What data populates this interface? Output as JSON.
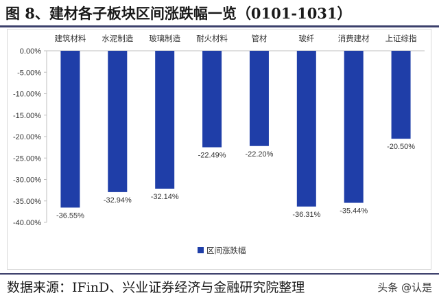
{
  "header": {
    "title": "图 8、建材各子板块区间涨跌幅一览（0101-1031）"
  },
  "footer": {
    "source": "数据来源：IFinD、兴业证券经济与金融研究院整理",
    "watermark": "头条 @认是"
  },
  "colors": {
    "bar": "#1f3ea8",
    "axis": "#bfbfbf",
    "text": "#333333",
    "rule": "#3b3f6b"
  },
  "chart_data": {
    "type": "bar",
    "title": "",
    "xlabel": "",
    "ylabel": "",
    "categories": [
      "建筑材料",
      "水泥制造",
      "玻璃制造",
      "耐火材料",
      "管材",
      "玻纤",
      "消费建材",
      "上证综指"
    ],
    "series": [
      {
        "name": "区间涨跌幅",
        "values": [
          -36.55,
          -32.94,
          -32.14,
          -22.49,
          -22.2,
          -36.31,
          -35.44,
          -20.5
        ]
      }
    ],
    "value_labels": [
      "-36.55%",
      "-32.94%",
      "-32.14%",
      "-22.49%",
      "-22.20%",
      "-36.31%",
      "-35.44%",
      "-20.50%"
    ],
    "ylim": [
      -40,
      0
    ],
    "y_ticks": [
      0,
      -5,
      -10,
      -15,
      -20,
      -25,
      -30,
      -35,
      -40
    ],
    "y_tick_labels": [
      "0.00%",
      "-5.00%",
      "-10.00%",
      "-15.00%",
      "-20.00%",
      "-25.00%",
      "-30.00%",
      "-35.00%",
      "-40.00%"
    ],
    "category_axis_position": "top",
    "grid": false,
    "legend_position": "bottom"
  }
}
